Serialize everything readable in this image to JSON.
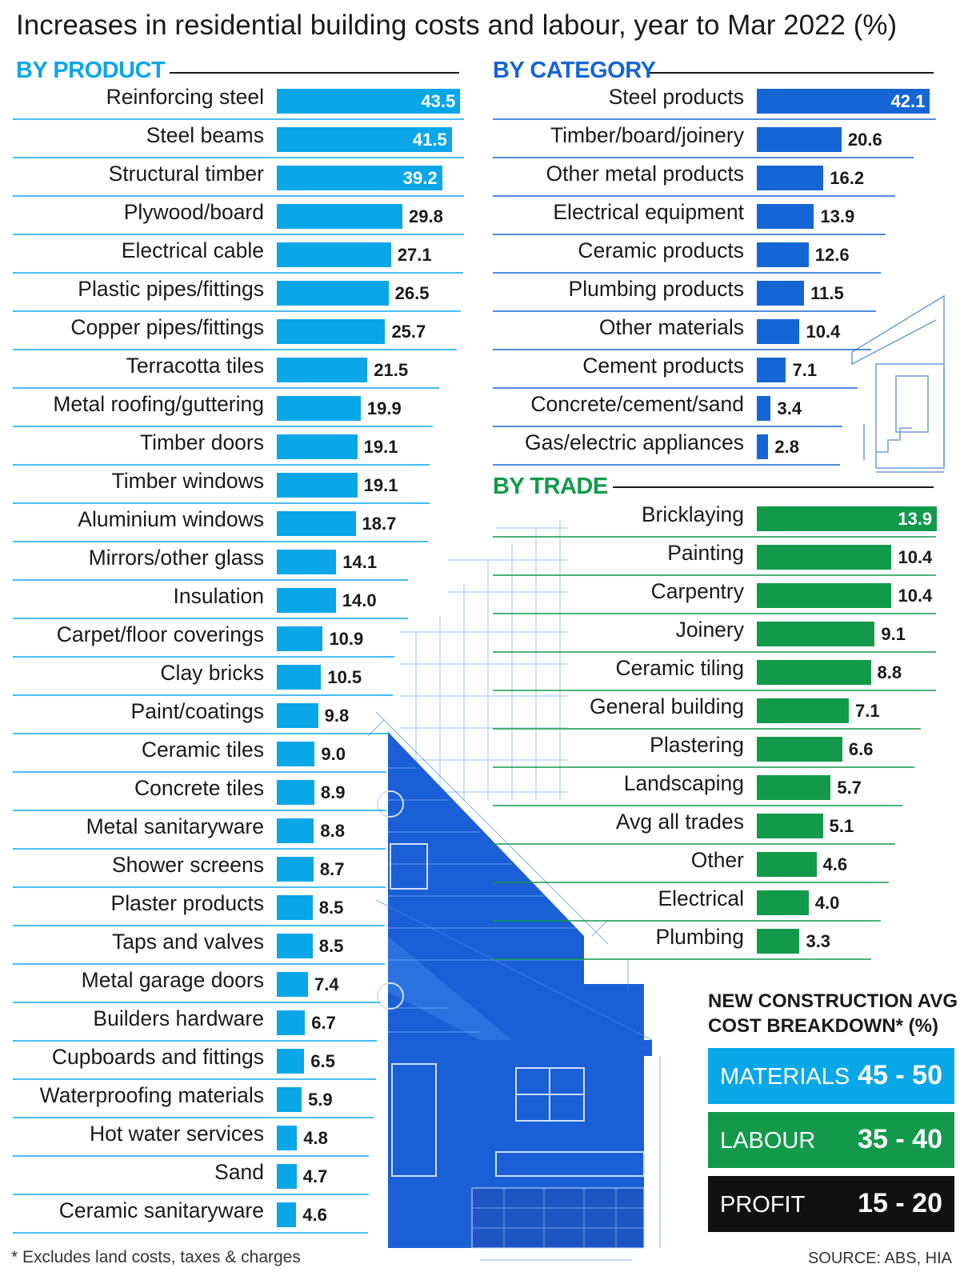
{
  "title": "Increases in residential building costs and labour, year to Mar 2022 (%)",
  "colors": {
    "product": "#0aa7e8",
    "category": "#1565d4",
    "trade": "#129a4a",
    "profit": "#111111",
    "house": "#1a5fd6"
  },
  "chart_data": [
    {
      "type": "bar",
      "orientation": "horizontal",
      "section": "BY PRODUCT",
      "categories": [
        "Reinforcing steel",
        "Steel beams",
        "Structural timber",
        "Plywood/board",
        "Electrical cable",
        "Plastic pipes/fittings",
        "Copper pipes/fittings",
        "Terracotta tiles",
        "Metal roofing/guttering",
        "Timber doors",
        "Timber windows",
        "Aluminium windows",
        "Mirrors/other glass",
        "Insulation",
        "Carpet/floor coverings",
        "Clay bricks",
        "Paint/coatings",
        "Ceramic tiles",
        "Concrete tiles",
        "Metal sanitaryware",
        "Shower screens",
        "Plaster products",
        "Taps and valves",
        "Metal garage doors",
        "Builders hardware",
        "Cupboards and fittings",
        "Waterproofing materials",
        "Hot water services",
        "Sand",
        "Ceramic sanitaryware"
      ],
      "values": [
        43.5,
        41.5,
        39.2,
        29.8,
        27.1,
        26.5,
        25.7,
        21.5,
        19.9,
        19.1,
        19.1,
        18.7,
        14.1,
        14.0,
        10.9,
        10.5,
        9.8,
        9.0,
        8.9,
        8.8,
        8.7,
        8.5,
        8.5,
        7.4,
        6.7,
        6.5,
        5.9,
        4.8,
        4.7,
        4.6
      ],
      "labels": [
        "43.5",
        "41.5",
        "39.2",
        "29.8",
        "27.1",
        "26.5",
        "25.7",
        "21.5",
        "19.9",
        "19.1",
        "19.1",
        "18.7",
        "14.1",
        "14.0",
        "10.9",
        "10.5",
        "9.8",
        "9.0",
        "8.9",
        "8.8",
        "8.7",
        "8.5",
        "8.5",
        "7.4",
        "6.7",
        "6.5",
        "5.9",
        "4.8",
        "4.7",
        "4.6"
      ],
      "xlim": [
        0,
        45
      ]
    },
    {
      "type": "bar",
      "orientation": "horizontal",
      "section": "BY CATEGORY",
      "categories": [
        "Steel products",
        "Timber/board/joinery",
        "Other metal products",
        "Electrical equipment",
        "Ceramic products",
        "Plumbing products",
        "Other materials",
        "Cement products",
        "Concrete/cement/sand",
        "Gas/electric appliances"
      ],
      "values": [
        42.1,
        20.6,
        16.2,
        13.9,
        12.6,
        11.5,
        10.4,
        7.1,
        3.4,
        2.8
      ],
      "labels": [
        "42.1",
        "20.6",
        "16.2",
        "13.9",
        "12.6",
        "11.5",
        "10.4",
        "7.1",
        "3.4",
        "2.8"
      ],
      "xlim": [
        0,
        45
      ]
    },
    {
      "type": "bar",
      "orientation": "horizontal",
      "section": "BY TRADE",
      "categories": [
        "Bricklaying",
        "Painting",
        "Carpentry",
        "Joinery",
        "Ceramic tiling",
        "General building",
        "Plastering",
        "Landscaping",
        "Avg all trades",
        "Other",
        "Electrical",
        "Plumbing"
      ],
      "values": [
        13.9,
        10.4,
        10.4,
        9.1,
        8.8,
        7.1,
        6.6,
        5.7,
        5.1,
        4.6,
        4.0,
        3.3
      ],
      "labels": [
        "13.9",
        "10.4",
        "10.4",
        "9.1",
        "8.8",
        "7.1",
        "6.6",
        "5.7",
        "5.1",
        "4.6",
        "4.0",
        "3.3"
      ],
      "xlim": [
        0,
        14.5
      ]
    }
  ],
  "breakdown": {
    "title_line1": "NEW CONSTRUCTION AVG",
    "title_line2": "COST BREAKDOWN* (%)",
    "items": [
      {
        "label": "MATERIALS",
        "value": "45 - 50",
        "color": "#0aa7e8"
      },
      {
        "label": "LABOUR",
        "value": "35 - 40",
        "color": "#129a4a"
      },
      {
        "label": "PROFIT",
        "value": "15 - 20",
        "color": "#111111"
      }
    ]
  },
  "footnote": "* Excludes land costs, taxes & charges",
  "source": "SOURCE: ABS, HIA"
}
